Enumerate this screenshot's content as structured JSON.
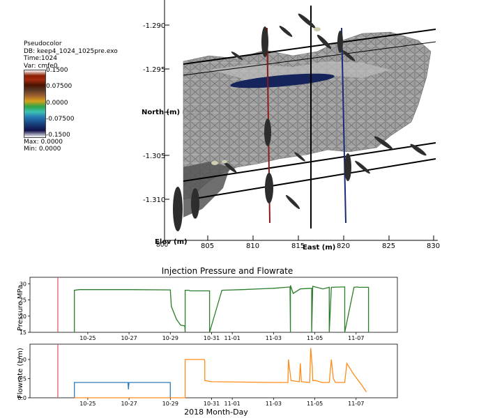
{
  "legend": {
    "plot_type": "Pseudocolor",
    "db": "DB: keep4_1024_1025pre.exo",
    "time": "Time:1024",
    "var": "Var: cmfe0",
    "ticks": [
      "0.1500",
      "0.07500",
      "0.0000",
      "-0.07500",
      "-0.1500"
    ],
    "max": "Max: 0.0000",
    "min": "Min: 0.0000"
  },
  "viz3d": {
    "y_axis_label": "North (m) (x10^3)",
    "y_ticks": [
      "-1.290",
      "-1.295",
      "-1.300",
      "-1.305",
      "-1.310"
    ],
    "x_axis_label": "East (m)",
    "x_ticks": [
      "805",
      "810",
      "815",
      "820",
      "825",
      "830"
    ],
    "z_axis_label": "Elev (m)",
    "origin_label": "800"
  },
  "chart_data": [
    {
      "type": "line",
      "title": "Injection Pressure and Flowrate",
      "ylabel": "Pressure MPa",
      "ylim": [
        15,
        32
      ],
      "yticks": [
        "15",
        "20",
        "25",
        "30"
      ],
      "xticks": [
        "10-25",
        "10-27",
        "10-29",
        "10-31",
        "11-01",
        "11-03",
        "11-05",
        "11-07"
      ],
      "series": [
        {
          "color": "#2a7d2a",
          "x": [
            24.35,
            24.35,
            24.6,
            27,
            29,
            29.05,
            29.3,
            29.5,
            29.7,
            29.72,
            29.72,
            29.9,
            29.95,
            30.9,
            30.9,
            31.5,
            32.5,
            34.0,
            34.8,
            34.82,
            34.82,
            34.95,
            35.3,
            35.85,
            35.85,
            35.9,
            36.4,
            36.7,
            36.7,
            36.8,
            37.4,
            37.45,
            37.45,
            37.9,
            38.05,
            38.1,
            38.6,
            38.6
          ],
          "y": [
            15,
            28.0,
            28.2,
            28.2,
            28.1,
            23,
            19.0,
            17.2,
            17.0,
            15.0,
            28.0,
            28.0,
            27.8,
            27.8,
            15.0,
            28.0,
            28.2,
            28.6,
            29.0,
            15.0,
            29.5,
            27.0,
            28.4,
            28.6,
            15.0,
            29.2,
            28.4,
            28.9,
            15.0,
            28.9,
            29.0,
            29.0,
            15.0,
            28.9,
            29.0,
            28.9,
            28.9,
            15.0
          ]
        }
      ],
      "vline_x": 23.55,
      "vline_color": "#d9534f"
    },
    {
      "type": "line",
      "xlabel": "2018 Month-Day",
      "ylabel": "Flowrate (L/m)",
      "ylim": [
        0,
        1.4
      ],
      "yticks": [
        "0.0",
        "0.5",
        "1.0"
      ],
      "xticks": [
        "10-25",
        "10-27",
        "10-29",
        "10-31",
        "11-01",
        "11-03",
        "11-05",
        "11-07"
      ],
      "series": [
        {
          "color": "#2b7bba",
          "x": [
            24.35,
            24.35,
            26.95,
            26.97,
            27.0,
            29.0,
            29.0
          ],
          "y": [
            0.0,
            0.4,
            0.4,
            0.22,
            0.4,
            0.4,
            0.0
          ]
        },
        {
          "color": "#ff8c1a",
          "x": [
            24.35,
            29.7,
            29.72,
            29.72,
            30.65,
            30.67,
            30.67,
            31.0,
            34.0,
            34.7,
            34.72,
            34.85,
            35.25,
            35.3,
            35.35,
            35.75,
            35.8,
            35.88,
            35.9,
            36.05,
            36.35,
            36.7,
            36.8,
            36.9,
            37.0,
            37.45,
            37.55,
            37.9,
            38.25,
            38.5
          ],
          "y": [
            0.0,
            0.0,
            0.0,
            1.0,
            1.0,
            0.95,
            0.45,
            0.42,
            0.4,
            0.4,
            1.0,
            0.45,
            0.42,
            0.9,
            0.42,
            0.4,
            1.3,
            0.8,
            0.45,
            0.45,
            0.4,
            0.4,
            1.0,
            0.5,
            0.4,
            0.4,
            0.9,
            0.6,
            0.35,
            0.15
          ]
        }
      ],
      "vline_x": 23.55,
      "vline_color": "#d9534f"
    }
  ]
}
